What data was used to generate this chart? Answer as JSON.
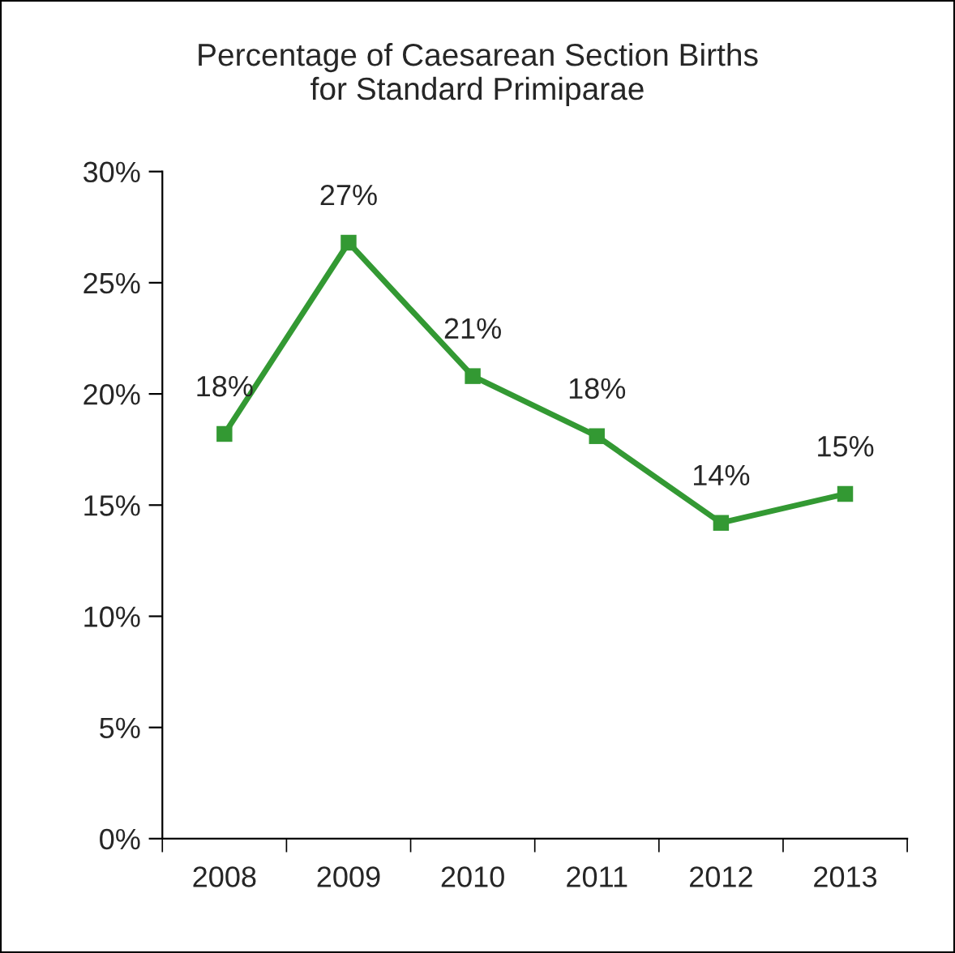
{
  "chart_data": {
    "type": "line",
    "title": "Percentage of Caesarean Section Births\nfor Standard Primiparae",
    "categories": [
      "2008",
      "2009",
      "2010",
      "2011",
      "2012",
      "2013"
    ],
    "series": [
      {
        "color": "#339933",
        "values": [
          18.2,
          26.8,
          20.8,
          18.1,
          14.2,
          15.5
        ],
        "value_labels": [
          "18%",
          "27%",
          "21%",
          "18%",
          "14%",
          "15%"
        ]
      }
    ],
    "ylim": [
      0,
      30
    ],
    "yticks": [
      {
        "value": 0,
        "label": "0%"
      },
      {
        "value": 5,
        "label": "5%"
      },
      {
        "value": 10,
        "label": "10%"
      },
      {
        "value": 15,
        "label": "15%"
      },
      {
        "value": 20,
        "label": "20%"
      },
      {
        "value": 25,
        "label": "25%"
      },
      {
        "value": 30,
        "label": "30%"
      }
    ],
    "marker": "square",
    "line_style": "solid",
    "grid": false,
    "legend": false
  }
}
